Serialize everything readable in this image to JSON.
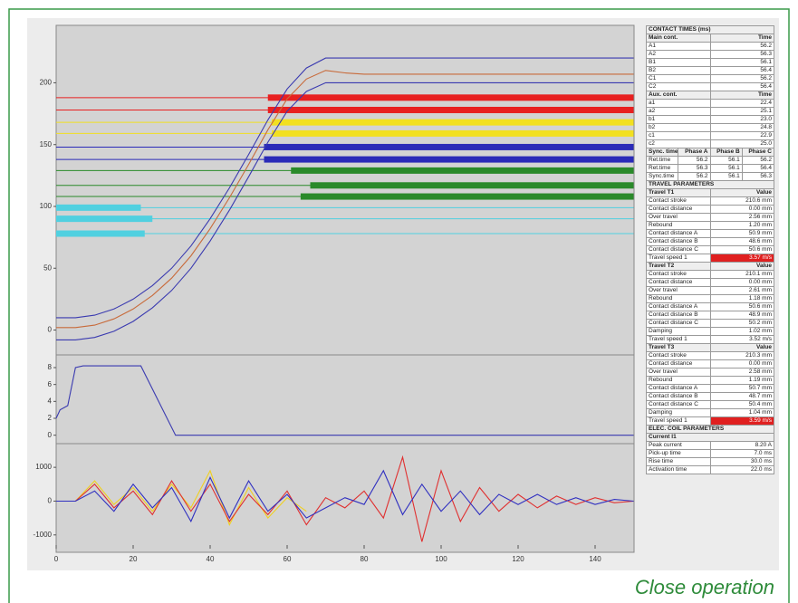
{
  "caption": "Close operation",
  "chart_data": [
    {
      "type": "line",
      "xlim": [
        0,
        150
      ],
      "ylim": [
        -15,
        245
      ],
      "yticks": [
        0,
        50,
        100,
        150,
        200
      ],
      "x": [
        0,
        5,
        10,
        15,
        20,
        25,
        30,
        35,
        40,
        45,
        50,
        55,
        60,
        65,
        70,
        75,
        80,
        100,
        120,
        150
      ],
      "series": [
        {
          "color": "#3a3ab0",
          "values": [
            10,
            10,
            12,
            17,
            25,
            36,
            50,
            68,
            90,
            115,
            142,
            170,
            195,
            212,
            220,
            220,
            220,
            220,
            220,
            220
          ]
        },
        {
          "color": "#c86a3a",
          "values": [
            2,
            2,
            4,
            9,
            17,
            28,
            42,
            60,
            82,
            107,
            134,
            162,
            187,
            203,
            210,
            208,
            207,
            207,
            207,
            207
          ]
        },
        {
          "color": "#3a3ab0",
          "values": [
            -8,
            -8,
            -6,
            -1,
            7,
            18,
            32,
            50,
            72,
            97,
            124,
            152,
            177,
            193,
            200,
            200,
            200,
            200,
            200,
            200
          ]
        }
      ],
      "bars": [
        {
          "color": "#e82020",
          "level": 188,
          "start": 55,
          "end": 150
        },
        {
          "color": "#e82020",
          "level": 178,
          "start": 55,
          "end": 150
        },
        {
          "color": "#f2e020",
          "level": 168,
          "start": 56,
          "end": 150
        },
        {
          "color": "#f2e020",
          "level": 159,
          "start": 56,
          "end": 150
        },
        {
          "color": "#2a2ab8",
          "level": 148,
          "start": 54,
          "end": 150
        },
        {
          "color": "#2a2ab8",
          "level": 138,
          "start": 54,
          "end": 150
        },
        {
          "color": "#2a8a2a",
          "level": 129,
          "start": 61,
          "end": 150
        },
        {
          "color": "#2a8a2a",
          "level": 117,
          "start": 66,
          "end": 150
        },
        {
          "color": "#2a8a2a",
          "level": 108,
          "start": 63.5,
          "end": 150
        },
        {
          "color": "#50d0e0",
          "level": 99,
          "start": 0,
          "end": 22
        },
        {
          "color": "#50d0e0",
          "level": 90,
          "start": 0,
          "end": 25
        },
        {
          "color": "#50d0e0",
          "level": 78,
          "start": 0,
          "end": 23
        }
      ]
    },
    {
      "type": "line",
      "xlim": [
        0,
        150
      ],
      "ylim": [
        -1,
        9.5
      ],
      "yticks": [
        0,
        2,
        4,
        6,
        8
      ],
      "x": [
        0,
        1,
        3,
        5,
        7,
        22,
        31,
        150
      ],
      "series": [
        {
          "color": "#3a3ab0",
          "values": [
            2,
            3,
            3.5,
            8,
            8.2,
            8.2,
            0,
            0
          ]
        }
      ]
    },
    {
      "type": "line",
      "xlim": [
        0,
        150
      ],
      "ylim": [
        -1300,
        1700
      ],
      "yticks": [
        -1000,
        0,
        1000
      ],
      "xticks": [
        0,
        20,
        40,
        60,
        80,
        100,
        120,
        140
      ],
      "x": [
        0,
        5,
        10,
        15,
        20,
        25,
        30,
        35,
        40,
        45,
        50,
        55,
        60,
        65,
        70,
        75,
        80,
        85,
        90,
        95,
        100,
        105,
        110,
        115,
        120,
        125,
        130,
        135,
        140,
        145,
        150
      ],
      "series": [
        {
          "color": "#f0d020",
          "values": [
            0,
            0,
            600,
            -100,
            400,
            -300,
            500,
            -200,
            900,
            -700,
            400,
            -500,
            100,
            -300,
            null,
            null,
            null,
            null,
            null,
            null,
            null,
            null,
            null,
            null,
            null,
            null,
            null,
            null,
            null,
            null,
            null
          ]
        },
        {
          "color": "#e03030",
          "values": [
            0,
            0,
            500,
            -200,
            300,
            -400,
            600,
            -300,
            500,
            -600,
            200,
            -400,
            300,
            -700,
            100,
            -200,
            300,
            -500,
            1300,
            -1200,
            900,
            -600,
            400,
            -300,
            200,
            -200,
            150,
            -100,
            100,
            -50,
            0
          ]
        },
        {
          "color": "#3030c0",
          "values": [
            0,
            0,
            300,
            -300,
            500,
            -200,
            400,
            -600,
            700,
            -500,
            600,
            -300,
            200,
            -500,
            -200,
            100,
            -100,
            900,
            -400,
            500,
            -300,
            300,
            -400,
            200,
            -100,
            200,
            -100,
            100,
            -100,
            50,
            0
          ]
        }
      ]
    }
  ],
  "table": {
    "sections": [
      {
        "title": "CONTACT TIMES (ms)",
        "header": [
          "Main cont.",
          "Time"
        ],
        "rows": [
          {
            "cells": [
              "A1",
              "56.2"
            ]
          },
          {
            "cells": [
              "A2",
              "56.3"
            ]
          },
          {
            "cells": [
              "B1",
              "56.1"
            ]
          },
          {
            "cells": [
              "B2",
              "56.4"
            ]
          },
          {
            "cells": [
              "C1",
              "56.2"
            ]
          },
          {
            "cells": [
              "C2",
              "56.4"
            ]
          }
        ]
      },
      {
        "header": [
          "Aux. cont.",
          "Time"
        ],
        "rows": [
          {
            "cells": [
              "a1",
              "22.4"
            ]
          },
          {
            "cells": [
              "a2",
              "25.1"
            ]
          },
          {
            "cells": [
              "b1",
              "23.0"
            ]
          },
          {
            "cells": [
              "b2",
              "24.8"
            ]
          },
          {
            "cells": [
              "c1",
              "22.9"
            ]
          },
          {
            "cells": [
              "c2",
              "25.0"
            ]
          }
        ]
      },
      {
        "header": [
          "Sync. times",
          "Phase A",
          "Phase B",
          "Phase C"
        ],
        "rows": [
          {
            "cells": [
              "Ret.time",
              "56.2",
              "56.1",
              "56.2"
            ]
          },
          {
            "cells": [
              "Ret.time",
              "56.3",
              "56.1",
              "56.4"
            ]
          },
          {
            "cells": [
              "Sync.time",
              "56.2",
              "56.1",
              "56.3"
            ]
          }
        ]
      },
      {
        "title": "TRAVEL PARAMETERS",
        "header": [
          "Travel T1",
          "Value"
        ],
        "rows": [
          {
            "cells": [
              "Contact stroke",
              "210.6 mm"
            ]
          },
          {
            "cells": [
              "Contact distance",
              "0.00 mm"
            ]
          },
          {
            "cells": [
              "Over travel",
              "2.56 mm"
            ]
          },
          {
            "cells": [
              "Rebound",
              "1.20 mm"
            ]
          },
          {
            "cells": [
              "Contact distance A",
              "50.9 mm"
            ]
          },
          {
            "cells": [
              "Contact distance B",
              "48.6 mm"
            ]
          },
          {
            "cells": [
              "Contact distance C",
              "50.6 mm"
            ]
          },
          {
            "cells": [
              "Travel speed 1",
              "3.57 m/s"
            ],
            "alarm": true
          }
        ]
      },
      {
        "header": [
          "Travel T2",
          "Value"
        ],
        "rows": [
          {
            "cells": [
              "Contact stroke",
              "210.1 mm"
            ]
          },
          {
            "cells": [
              "Contact distance",
              "0.00 mm"
            ]
          },
          {
            "cells": [
              "Over travel",
              "2.61 mm"
            ]
          },
          {
            "cells": [
              "Rebound",
              "1.18 mm"
            ]
          },
          {
            "cells": [
              "Contact distance A",
              "50.6 mm"
            ]
          },
          {
            "cells": [
              "Contact distance B",
              "48.9 mm"
            ]
          },
          {
            "cells": [
              "Contact distance C",
              "50.2 mm"
            ]
          },
          {
            "cells": [
              "Damping",
              "1.02 mm"
            ]
          },
          {
            "cells": [
              "Travel speed 1",
              "3.52 m/s"
            ]
          }
        ]
      },
      {
        "header": [
          "Travel T3",
          "Value"
        ],
        "rows": [
          {
            "cells": [
              "Contact stroke",
              "210.3 mm"
            ]
          },
          {
            "cells": [
              "Contact distance",
              "0.00 mm"
            ]
          },
          {
            "cells": [
              "Over travel",
              "2.58 mm"
            ]
          },
          {
            "cells": [
              "Rebound",
              "1.19 mm"
            ]
          },
          {
            "cells": [
              "Contact distance A",
              "50.7 mm"
            ]
          },
          {
            "cells": [
              "Contact distance B",
              "48.7 mm"
            ]
          },
          {
            "cells": [
              "Contact distance C",
              "50.4 mm"
            ]
          },
          {
            "cells": [
              "Damping",
              "1.04 mm"
            ]
          },
          {
            "cells": [
              "Travel speed 1",
              "3.59 m/s"
            ],
            "alarm": true
          }
        ]
      },
      {
        "title": "ELEC. COIL PARAMETERS",
        "header": [
          "Current I1"
        ],
        "rows": [
          {
            "cells": [
              "Peak current",
              "8.20 A"
            ]
          },
          {
            "cells": [
              "Pick-up time",
              "7.0 ms"
            ]
          },
          {
            "cells": [
              "Rise time",
              "30.0 ms"
            ]
          },
          {
            "cells": [
              "Activation time",
              "22.0 ms"
            ]
          }
        ]
      }
    ]
  }
}
